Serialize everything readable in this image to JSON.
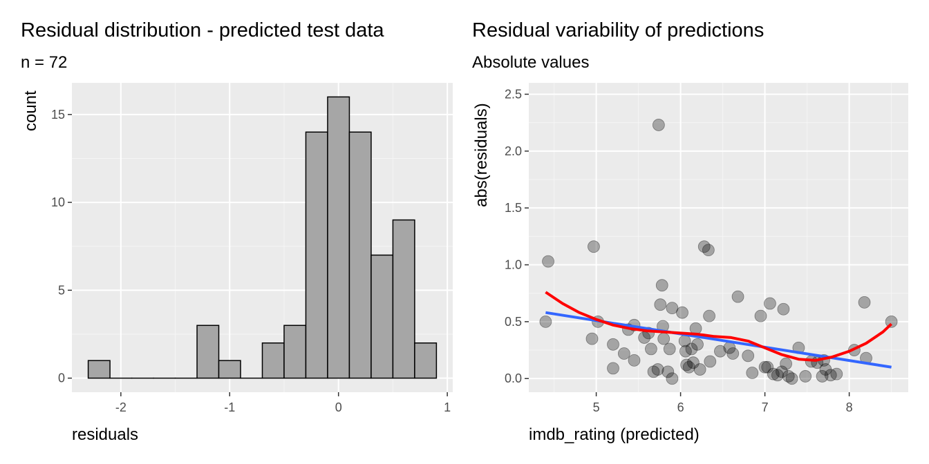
{
  "chart_data": [
    {
      "type": "bar",
      "title": "Residual distribution - predicted test data",
      "subtitle": "n = 72",
      "xlabel": "residuals",
      "ylabel": "count",
      "xlim": [
        -2.45,
        1.05
      ],
      "ylim": [
        -0.8,
        16.8
      ],
      "x_ticks": [
        -2,
        -1,
        0,
        1
      ],
      "y_ticks": [
        0,
        5,
        10,
        15
      ],
      "bin_width": 0.2,
      "bins": [
        {
          "center": -2.2,
          "count": 1
        },
        {
          "center": -2.0,
          "count": 0
        },
        {
          "center": -1.8,
          "count": 0
        },
        {
          "center": -1.6,
          "count": 0
        },
        {
          "center": -1.4,
          "count": 0
        },
        {
          "center": -1.2,
          "count": 3
        },
        {
          "center": -1.0,
          "count": 1
        },
        {
          "center": -0.8,
          "count": 0
        },
        {
          "center": -0.6,
          "count": 2
        },
        {
          "center": -0.4,
          "count": 3
        },
        {
          "center": -0.2,
          "count": 14
        },
        {
          "center": 0.0,
          "count": 16
        },
        {
          "center": 0.2,
          "count": 14
        },
        {
          "center": 0.4,
          "count": 7
        },
        {
          "center": 0.6,
          "count": 9
        },
        {
          "center": 0.8,
          "count": 2
        }
      ],
      "bar_fill": "#a6a6a6",
      "bar_stroke": "#000000",
      "panel_bg": "#ebebeb",
      "grid": true
    },
    {
      "type": "scatter",
      "title": "Residual variability of predictions",
      "subtitle": "Absolute values",
      "xlabel": "imdb_rating (predicted)",
      "ylabel": "abs(residuals)",
      "xlim": [
        4.2,
        8.7
      ],
      "ylim": [
        -0.12,
        2.6
      ],
      "x_ticks": [
        5,
        6,
        7,
        8
      ],
      "y_ticks": [
        0.0,
        0.5,
        1.0,
        1.5,
        2.0,
        2.5
      ],
      "y_tick_labels": [
        "0.0",
        "0.5",
        "1.0",
        "1.5",
        "2.0",
        "2.5"
      ],
      "points": [
        {
          "x": 4.4,
          "y": 0.5
        },
        {
          "x": 4.43,
          "y": 1.03
        },
        {
          "x": 4.97,
          "y": 1.16
        },
        {
          "x": 4.95,
          "y": 0.35
        },
        {
          "x": 5.02,
          "y": 0.5
        },
        {
          "x": 5.2,
          "y": 0.3
        },
        {
          "x": 5.2,
          "y": 0.09
        },
        {
          "x": 5.33,
          "y": 0.22
        },
        {
          "x": 5.38,
          "y": 0.43
        },
        {
          "x": 5.45,
          "y": 0.47
        },
        {
          "x": 5.45,
          "y": 0.16
        },
        {
          "x": 5.57,
          "y": 0.36
        },
        {
          "x": 5.62,
          "y": 0.4
        },
        {
          "x": 5.65,
          "y": 0.26
        },
        {
          "x": 5.68,
          "y": 0.06
        },
        {
          "x": 5.73,
          "y": 0.08
        },
        {
          "x": 5.74,
          "y": 2.23
        },
        {
          "x": 5.76,
          "y": 0.65
        },
        {
          "x": 5.78,
          "y": 0.82
        },
        {
          "x": 5.79,
          "y": 0.46
        },
        {
          "x": 5.8,
          "y": 0.35
        },
        {
          "x": 5.85,
          "y": 0.06
        },
        {
          "x": 5.87,
          "y": 0.26
        },
        {
          "x": 5.9,
          "y": 0.62
        },
        {
          "x": 5.9,
          "y": 0.0
        },
        {
          "x": 6.02,
          "y": 0.58
        },
        {
          "x": 6.05,
          "y": 0.33
        },
        {
          "x": 6.06,
          "y": 0.24
        },
        {
          "x": 6.07,
          "y": 0.12
        },
        {
          "x": 6.1,
          "y": 0.1
        },
        {
          "x": 6.13,
          "y": 0.26
        },
        {
          "x": 6.15,
          "y": 0.14
        },
        {
          "x": 6.18,
          "y": 0.44
        },
        {
          "x": 6.2,
          "y": 0.3
        },
        {
          "x": 6.23,
          "y": 0.08
        },
        {
          "x": 6.28,
          "y": 1.16
        },
        {
          "x": 6.33,
          "y": 1.13
        },
        {
          "x": 6.34,
          "y": 0.55
        },
        {
          "x": 6.35,
          "y": 0.15
        },
        {
          "x": 6.47,
          "y": 0.24
        },
        {
          "x": 6.58,
          "y": 0.27
        },
        {
          "x": 6.62,
          "y": 0.22
        },
        {
          "x": 6.68,
          "y": 0.72
        },
        {
          "x": 6.8,
          "y": 0.2
        },
        {
          "x": 6.85,
          "y": 0.05
        },
        {
          "x": 6.95,
          "y": 0.55
        },
        {
          "x": 7.0,
          "y": 0.1
        },
        {
          "x": 7.03,
          "y": 0.1
        },
        {
          "x": 7.06,
          "y": 0.66
        },
        {
          "x": 7.1,
          "y": 0.04
        },
        {
          "x": 7.15,
          "y": 0.03
        },
        {
          "x": 7.2,
          "y": 0.06
        },
        {
          "x": 7.22,
          "y": 0.61
        },
        {
          "x": 7.25,
          "y": 0.13
        },
        {
          "x": 7.28,
          "y": 0.02
        },
        {
          "x": 7.32,
          "y": 0.0
        },
        {
          "x": 7.4,
          "y": 0.27
        },
        {
          "x": 7.48,
          "y": 0.02
        },
        {
          "x": 7.55,
          "y": 0.15
        },
        {
          "x": 7.62,
          "y": 0.14
        },
        {
          "x": 7.68,
          "y": 0.02
        },
        {
          "x": 7.7,
          "y": 0.16
        },
        {
          "x": 7.72,
          "y": 0.08
        },
        {
          "x": 7.78,
          "y": 0.03
        },
        {
          "x": 7.85,
          "y": 0.04
        },
        {
          "x": 8.06,
          "y": 0.25
        },
        {
          "x": 8.18,
          "y": 0.67
        },
        {
          "x": 8.2,
          "y": 0.18
        },
        {
          "x": 8.5,
          "y": 0.5
        }
      ],
      "point_color": "#000000",
      "point_opacity": 0.3,
      "linear_fit": [
        [
          4.4,
          0.58
        ],
        [
          8.5,
          0.1
        ]
      ],
      "linear_fit_color": "#3366ff",
      "smooth_fit": [
        [
          4.4,
          0.76
        ],
        [
          4.6,
          0.66
        ],
        [
          4.8,
          0.58
        ],
        [
          5.0,
          0.52
        ],
        [
          5.2,
          0.47
        ],
        [
          5.4,
          0.44
        ],
        [
          5.6,
          0.42
        ],
        [
          5.8,
          0.41
        ],
        [
          6.0,
          0.4
        ],
        [
          6.2,
          0.39
        ],
        [
          6.4,
          0.37
        ],
        [
          6.6,
          0.36
        ],
        [
          6.8,
          0.33
        ],
        [
          7.0,
          0.27
        ],
        [
          7.2,
          0.21
        ],
        [
          7.4,
          0.17
        ],
        [
          7.6,
          0.16
        ],
        [
          7.8,
          0.19
        ],
        [
          8.0,
          0.24
        ],
        [
          8.2,
          0.31
        ],
        [
          8.4,
          0.41
        ],
        [
          8.5,
          0.48
        ]
      ],
      "smooth_fit_color": "#ff0000",
      "panel_bg": "#ebebeb",
      "grid": true
    }
  ]
}
